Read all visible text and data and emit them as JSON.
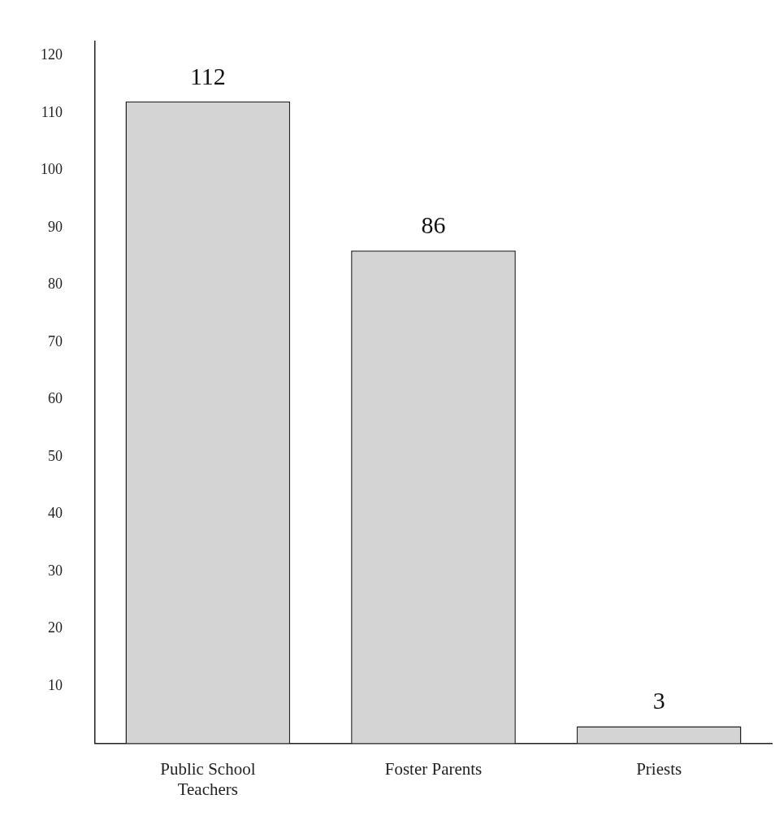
{
  "chart_data": {
    "type": "bar",
    "categories": [
      "Public School Teachers",
      "Foster Parents",
      "Priests"
    ],
    "values": [
      112,
      86,
      3
    ],
    "color": "#d4d4d4",
    "ylim": [
      0,
      122.5
    ],
    "yticks": [
      10,
      20,
      30,
      40,
      50,
      60,
      70,
      80,
      90,
      100,
      110,
      120
    ],
    "grid": false,
    "data_labels": true
  }
}
